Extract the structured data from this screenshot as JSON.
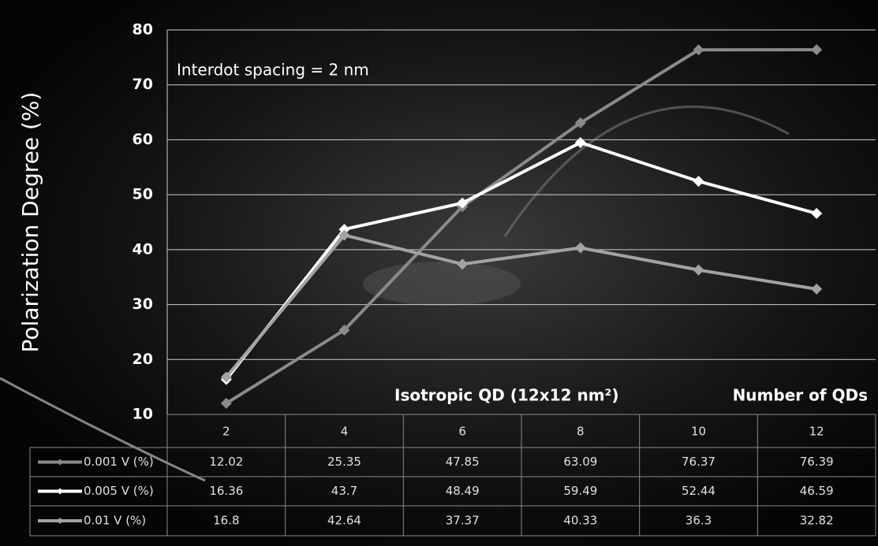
{
  "chart_data": {
    "type": "line",
    "y_label": "Polarization Degree (%)",
    "annotations": [
      "Interdot spacing = 2 nm",
      "Isotropic QD (12x12 nm²)",
      "Number of QDs"
    ],
    "categories": [
      2,
      4,
      6,
      8,
      10,
      12
    ],
    "series": [
      {
        "name": "0.001 V (%)",
        "color": "#8a8a8a",
        "values": [
          12.02,
          25.35,
          47.85,
          63.09,
          76.37,
          76.39
        ]
      },
      {
        "name": "0.005 V (%)",
        "color": "#ffffff",
        "values": [
          16.36,
          43.7,
          48.49,
          59.49,
          52.44,
          46.59
        ]
      },
      {
        "name": "0.01 V (%)",
        "color": "#a3a3a3",
        "values": [
          16.8,
          42.64,
          37.37,
          40.33,
          36.3,
          32.82
        ]
      }
    ],
    "ylim": [
      10,
      80
    ],
    "yticks": [
      10,
      20,
      30,
      40,
      50,
      60,
      70,
      80
    ],
    "grid": true
  }
}
